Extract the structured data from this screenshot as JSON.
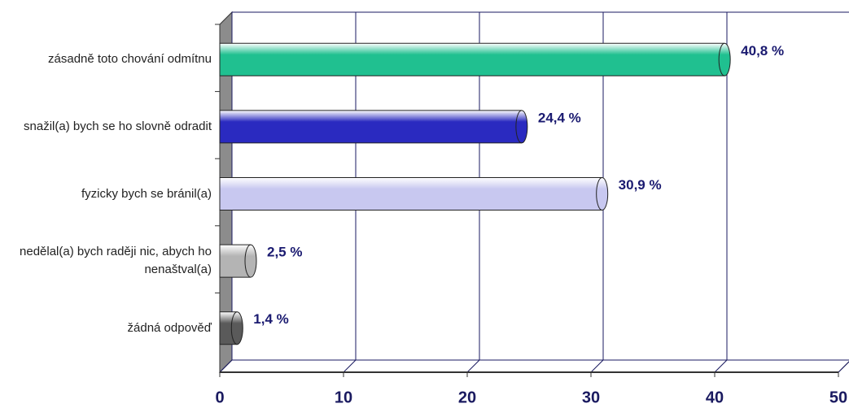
{
  "chart_data": {
    "type": "bar",
    "orientation": "horizontal",
    "categories": [
      "zásadně toto chování odmítnu",
      "snažil(a) bych se ho slovně odradit",
      "fyzicky bych se bránil(a)",
      "nedělal(a) bych raději nic, abych ho nenaštval(a)",
      "žádná odpověď"
    ],
    "values": [
      40.8,
      24.4,
      30.9,
      2.5,
      1.4
    ],
    "value_labels": [
      "40,8 %",
      "24,4 %",
      "30,9 %",
      "2,5 %",
      "1,4 %"
    ],
    "colors": [
      "#20c090",
      "#2a2ac0",
      "#c8c8f0",
      "#b4b4b4",
      "#5a5a5a"
    ],
    "xlim": [
      0,
      50
    ],
    "xticks": [
      0,
      10,
      20,
      30,
      40,
      50
    ],
    "grid": true
  }
}
